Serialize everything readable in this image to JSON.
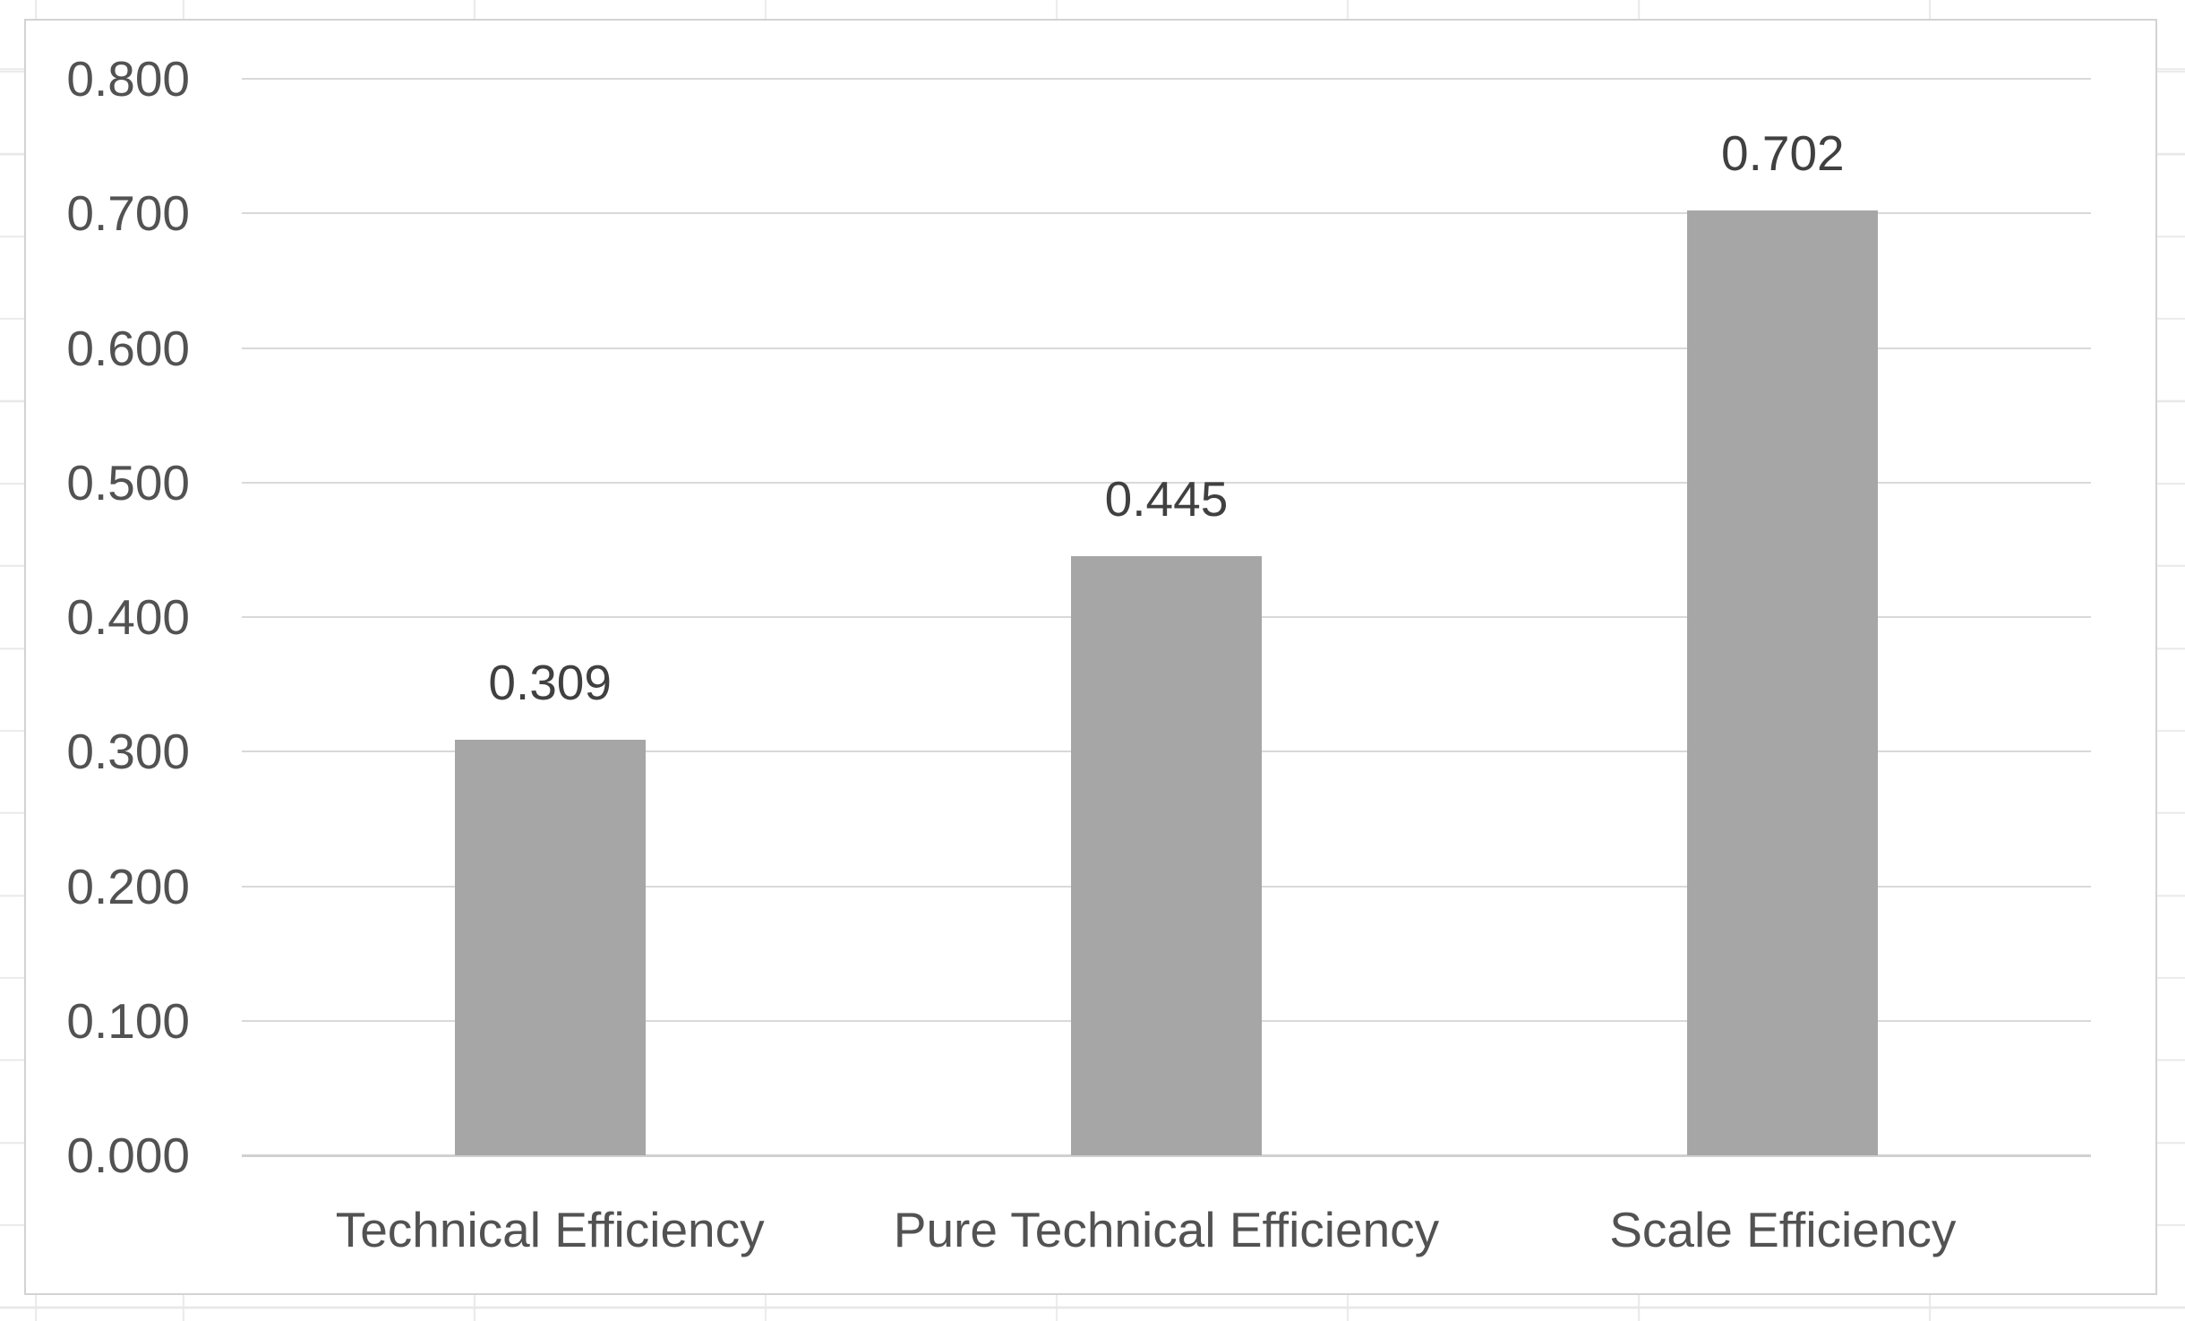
{
  "chart_data": {
    "type": "bar",
    "title": "",
    "xlabel": "",
    "ylabel": "",
    "categories": [
      "Technical Efficiency",
      "Pure Technical Efficiency",
      "Scale Efficiency"
    ],
    "values": [
      0.309,
      0.445,
      0.702
    ],
    "data_labels": [
      "0.309",
      "0.445",
      "0.702"
    ],
    "ylim": [
      0.0,
      0.8
    ],
    "ytick_step": 0.1,
    "ytick_labels": [
      "0.800",
      "0.700",
      "0.600",
      "0.500",
      "0.400",
      "0.300",
      "0.200",
      "0.100",
      "0.000"
    ],
    "grid": true,
    "legend": false,
    "series_count": 1,
    "colors": {
      "bar": "#a6a6a6",
      "gridline": "#d9d9d9",
      "axis_line": "#d0d0d0",
      "tick_text": "#525252",
      "data_label_text": "#404040",
      "chart_border": "#d3d3d3",
      "worksheet_gridline": "#e8e8e8"
    }
  }
}
